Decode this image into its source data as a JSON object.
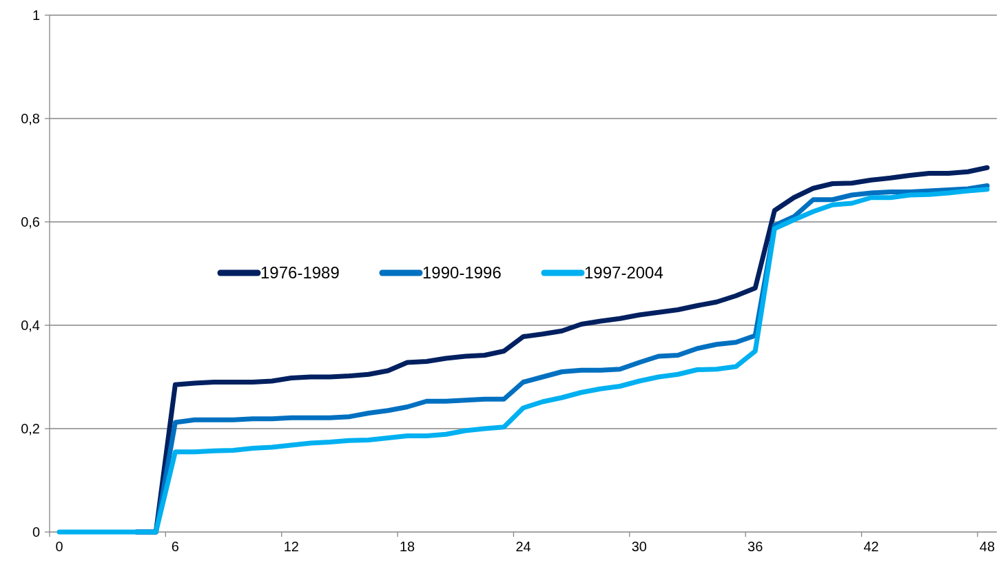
{
  "chart_data": {
    "type": "line",
    "categories": [
      "0",
      null,
      null,
      null,
      null,
      null,
      "6",
      null,
      null,
      null,
      null,
      null,
      "12",
      null,
      null,
      null,
      null,
      null,
      "18",
      null,
      null,
      null,
      null,
      null,
      "24",
      null,
      null,
      null,
      null,
      null,
      "30",
      null,
      null,
      null,
      null,
      null,
      "36",
      null,
      null,
      null,
      null,
      null,
      "42",
      null,
      null,
      null,
      null,
      null,
      "48"
    ],
    "series": [
      {
        "name": "1976-1989",
        "color": "#002060",
        "values": [
          null,
          null,
          null,
          null,
          0,
          0,
          0.285,
          0.288,
          0.29,
          0.29,
          0.29,
          0.292,
          0.298,
          0.3,
          0.3,
          0.302,
          0.305,
          0.312,
          0.328,
          0.33,
          0.336,
          0.34,
          0.342,
          0.35,
          0.378,
          0.383,
          0.389,
          0.402,
          0.408,
          0.413,
          0.42,
          0.425,
          0.43,
          0.438,
          0.445,
          0.457,
          0.472,
          0.622,
          0.647,
          0.665,
          0.674,
          0.675,
          0.681,
          0.685,
          0.69,
          0.694,
          0.694,
          0.697,
          0.705
        ]
      },
      {
        "name": "1990-1996",
        "color": "#0070c0",
        "values": [
          null,
          null,
          null,
          null,
          0,
          0,
          0.212,
          0.217,
          0.217,
          0.217,
          0.219,
          0.219,
          0.221,
          0.221,
          0.221,
          0.223,
          0.23,
          0.235,
          0.242,
          0.253,
          0.253,
          0.255,
          0.257,
          0.257,
          0.29,
          0.3,
          0.31,
          0.313,
          0.313,
          0.315,
          0.328,
          0.34,
          0.342,
          0.355,
          0.363,
          0.367,
          0.38,
          0.593,
          0.61,
          0.643,
          0.643,
          0.652,
          0.656,
          0.658,
          0.658,
          0.66,
          0.662,
          0.664,
          0.67
        ]
      },
      {
        "name": "1997-2004",
        "color": "#00b0f0",
        "values": [
          0,
          0,
          0,
          0,
          0,
          0,
          0.155,
          0.155,
          0.157,
          0.158,
          0.162,
          0.164,
          0.168,
          0.172,
          0.174,
          0.177,
          0.178,
          0.182,
          0.186,
          0.186,
          0.189,
          0.196,
          0.2,
          0.203,
          0.24,
          0.252,
          0.26,
          0.27,
          0.277,
          0.282,
          0.292,
          0.3,
          0.305,
          0.314,
          0.315,
          0.32,
          0.35,
          0.587,
          0.604,
          0.62,
          0.633,
          0.636,
          0.647,
          0.647,
          0.652,
          0.653,
          0.656,
          0.66,
          0.663
        ]
      }
    ],
    "ylim": [
      0,
      1
    ],
    "yticks": [
      {
        "value": 0,
        "label": "0"
      },
      {
        "value": 0.2,
        "label": "0,2"
      },
      {
        "value": 0.4,
        "label": "0,4"
      },
      {
        "value": 0.6,
        "label": "0,6"
      },
      {
        "value": 0.8,
        "label": "0,8"
      },
      {
        "value": 1,
        "label": "1"
      }
    ],
    "grid": "y",
    "legend": "left",
    "line_style": "solid"
  }
}
